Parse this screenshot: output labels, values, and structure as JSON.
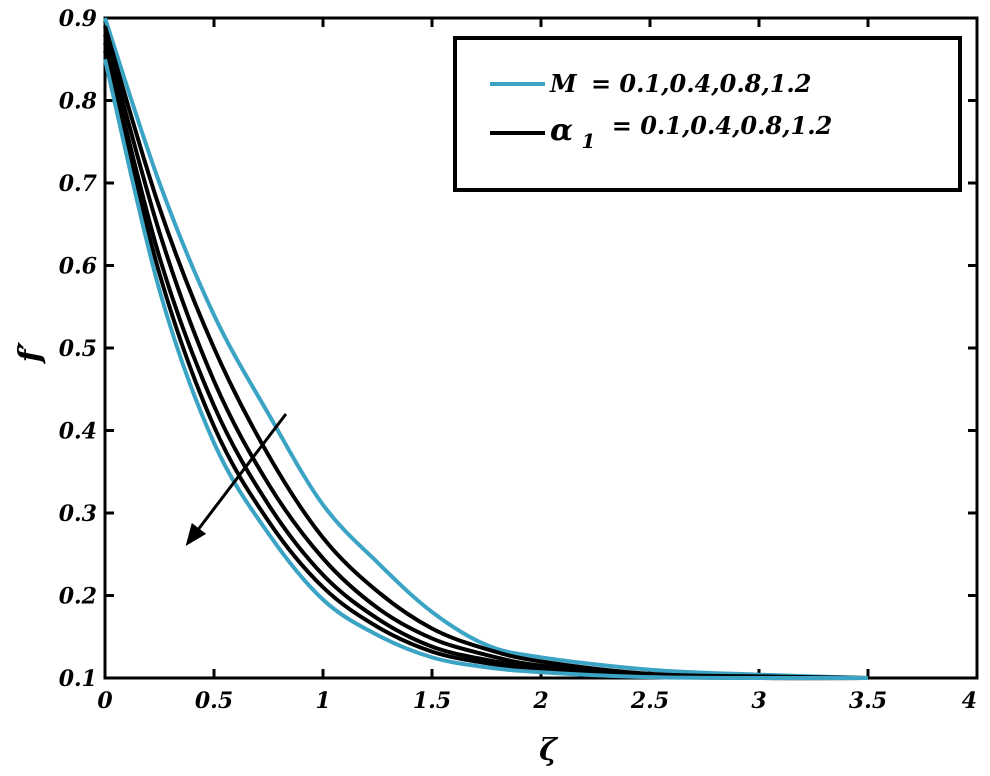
{
  "chart_data": {
    "type": "line",
    "xlabel": "ζ",
    "ylabel": "f′",
    "xlim": [
      0,
      4
    ],
    "ylim": [
      0.1,
      0.9
    ],
    "xticks": [
      "0",
      "0.5",
      "1",
      "1.5",
      "2",
      "2.5",
      "3",
      "3.5",
      "4"
    ],
    "yticks": [
      "0.1",
      "0.2",
      "0.3",
      "0.4",
      "0.5",
      "0.6",
      "0.7",
      "0.8",
      "0.9"
    ],
    "grid": false,
    "legend_position": "top-right",
    "legend": [
      {
        "symbol": "M",
        "text": "M = 0.1,0.4,0.8,1.2",
        "color": "#3ba3c4"
      },
      {
        "symbol": "α",
        "subscript": "1",
        "text": "α1 = 0.1,0.4,0.8,1.2",
        "color": "#000000"
      }
    ],
    "legend_values": "= 0.1,0.4,0.8,1.2",
    "arrow_annotation": {
      "from": [
        0.83,
        0.42
      ],
      "to": [
        0.37,
        0.26
      ],
      "meaning": "increasing parameter"
    },
    "series": [
      {
        "name": "M = 0.1",
        "color": "#3ba3c4",
        "x": [
          0,
          0.25,
          0.5,
          0.75,
          1,
          1.25,
          1.5,
          1.75,
          2,
          2.5,
          3,
          3.5
        ],
        "y": [
          0.9,
          0.7,
          0.54,
          0.42,
          0.31,
          0.24,
          0.18,
          0.14,
          0.125,
          0.11,
          0.104,
          0.1
        ]
      },
      {
        "name": "α1 = 0.1",
        "color": "#000000",
        "x": [
          0,
          0.25,
          0.5,
          0.75,
          1,
          1.25,
          1.5,
          1.75,
          2,
          2.5,
          3,
          3.5
        ],
        "y": [
          0.89,
          0.67,
          0.5,
          0.37,
          0.27,
          0.205,
          0.16,
          0.135,
          0.12,
          0.105,
          0.102,
          0.1
        ]
      },
      {
        "name": "α1 = 0.4",
        "color": "#000000",
        "x": [
          0,
          0.25,
          0.5,
          0.75,
          1,
          1.25,
          1.5,
          1.75,
          2,
          2.5,
          3,
          3.5
        ],
        "y": [
          0.88,
          0.64,
          0.46,
          0.335,
          0.245,
          0.185,
          0.148,
          0.128,
          0.115,
          0.104,
          0.101,
          0.1
        ]
      },
      {
        "name": "α1 = 0.8",
        "color": "#000000",
        "x": [
          0,
          0.25,
          0.5,
          0.75,
          1,
          1.25,
          1.5,
          1.75,
          2,
          2.5,
          3,
          3.5
        ],
        "y": [
          0.87,
          0.61,
          0.43,
          0.31,
          0.225,
          0.172,
          0.138,
          0.122,
          0.112,
          0.103,
          0.1,
          0.1
        ]
      },
      {
        "name": "α1 = 1.2",
        "color": "#000000",
        "x": [
          0,
          0.25,
          0.5,
          0.75,
          1,
          1.25,
          1.5,
          1.75,
          2,
          2.5,
          3,
          3.5
        ],
        "y": [
          0.86,
          0.59,
          0.405,
          0.29,
          0.21,
          0.162,
          0.132,
          0.118,
          0.11,
          0.102,
          0.1,
          0.1
        ]
      },
      {
        "name": "M = 1.2",
        "color": "#3ba3c4",
        "x": [
          0,
          0.25,
          0.5,
          0.75,
          1,
          1.25,
          1.5,
          1.75,
          2,
          2.5,
          3,
          3.5
        ],
        "y": [
          0.85,
          0.57,
          0.385,
          0.275,
          0.195,
          0.152,
          0.125,
          0.113,
          0.107,
          0.101,
          0.1,
          0.1
        ]
      }
    ]
  }
}
